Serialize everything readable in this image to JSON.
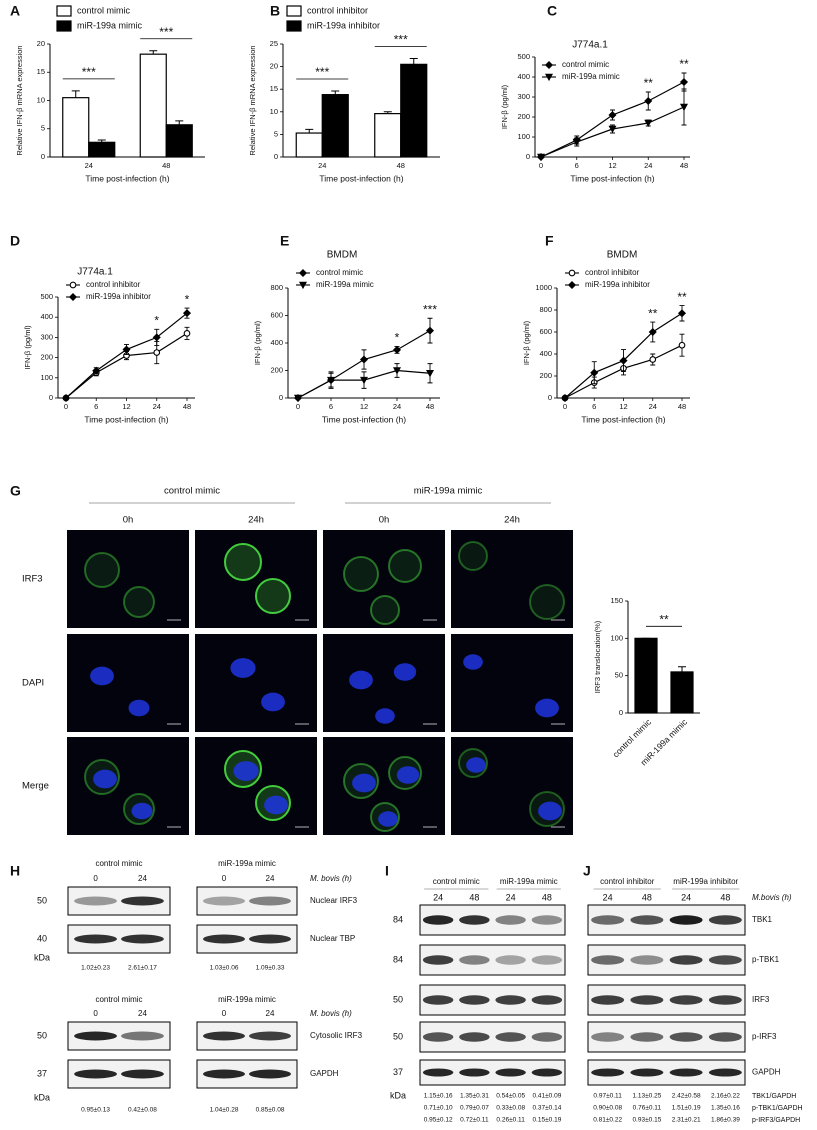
{
  "chart_data": [
    {
      "type": "bar",
      "label": "A",
      "categories": [
        "24",
        "48"
      ],
      "series": [
        {
          "name": "control mimic",
          "color": "#ffffff",
          "values": [
            10.5,
            18.2
          ],
          "errors": [
            1.2,
            0.6
          ]
        },
        {
          "name": "miR-199a mimic",
          "color": "#000000",
          "values": [
            2.6,
            5.7
          ],
          "errors": [
            0.4,
            0.7
          ]
        }
      ],
      "ylim": [
        0,
        20
      ],
      "yticks": [
        0,
        5,
        10,
        15,
        20
      ],
      "ylabel": "Relative IFN-β mRNA expression",
      "xlabel": "Time post-infection (h)",
      "annotations": [
        {
          "text": "***",
          "category": 0
        },
        {
          "text": "***",
          "category": 1
        }
      ]
    },
    {
      "type": "bar",
      "label": "B",
      "categories": [
        "24",
        "48"
      ],
      "series": [
        {
          "name": "control inhibitor",
          "color": "#ffffff",
          "values": [
            5.3,
            9.6
          ],
          "errors": [
            0.8,
            0.4
          ]
        },
        {
          "name": "miR-199a inhibitor",
          "color": "#000000",
          "values": [
            13.8,
            20.5
          ],
          "errors": [
            0.8,
            1.3
          ]
        }
      ],
      "ylim": [
        0,
        25
      ],
      "yticks": [
        0,
        5,
        10,
        15,
        20,
        25
      ],
      "ylabel": "Relative IFN-β mRNA expression",
      "xlabel": "Time post-infection (h)",
      "annotations": [
        {
          "text": "***",
          "category": 0
        },
        {
          "text": "***",
          "category": 1
        }
      ]
    },
    {
      "type": "line",
      "label": "C",
      "title": "J774a.1",
      "categories": [
        "0",
        "6",
        "12",
        "24",
        "48"
      ],
      "series": [
        {
          "name": "control mimic",
          "color": "#000000",
          "marker": "diamond",
          "values": [
            0,
            85,
            210,
            280,
            375
          ],
          "errors": [
            0,
            20,
            25,
            45,
            45
          ]
        },
        {
          "name": "miR-199a mimic",
          "color": "#000000",
          "marker": "triangle-down",
          "values": [
            0,
            75,
            140,
            170,
            250
          ],
          "errors": [
            0,
            20,
            20,
            15,
            90
          ]
        }
      ],
      "ylim": [
        0,
        500
      ],
      "yticks": [
        0,
        100,
        200,
        300,
        400,
        500
      ],
      "ylabel": "IFN-β (pg/ml)",
      "xlabel": "Time post-infection (h)",
      "annotations": [
        {
          "text": "**",
          "category": 3
        },
        {
          "text": "**",
          "category": 4
        }
      ]
    },
    {
      "type": "line",
      "label": "D",
      "title": "J774a.1",
      "categories": [
        "0",
        "6",
        "12",
        "24",
        "48"
      ],
      "series": [
        {
          "name": "control inhibitor",
          "color": "#000000",
          "marker": "circle-open",
          "values": [
            0,
            125,
            210,
            225,
            320
          ],
          "errors": [
            0,
            15,
            20,
            55,
            30
          ]
        },
        {
          "name": "miR-199a inhibitor",
          "color": "#000000",
          "marker": "diamond",
          "values": [
            0,
            135,
            240,
            300,
            420
          ],
          "errors": [
            0,
            15,
            25,
            40,
            25
          ]
        }
      ],
      "ylim": [
        0,
        500
      ],
      "yticks": [
        0,
        100,
        200,
        300,
        400,
        500
      ],
      "ylabel": "IFN-β (pg/ml)",
      "xlabel": "Time post-infection (h)",
      "annotations": [
        {
          "text": "*",
          "category": 3
        },
        {
          "text": "*",
          "category": 4
        }
      ]
    },
    {
      "type": "line",
      "label": "E",
      "title": "BMDM",
      "categories": [
        "0",
        "6",
        "12",
        "24",
        "48"
      ],
      "series": [
        {
          "name": "control mimic",
          "color": "#000000",
          "marker": "diamond",
          "values": [
            0,
            130,
            280,
            350,
            490
          ],
          "errors": [
            0,
            60,
            70,
            25,
            90
          ]
        },
        {
          "name": "miR-199a mimic",
          "color": "#000000",
          "marker": "triangle-down",
          "values": [
            0,
            130,
            130,
            200,
            180
          ],
          "errors": [
            0,
            50,
            60,
            50,
            70
          ]
        }
      ],
      "ylim": [
        0,
        800
      ],
      "yticks": [
        0,
        200,
        400,
        600,
        800
      ],
      "ylabel": "IFN-β (pg/ml)",
      "xlabel": "Time post-infection (h)",
      "annotations": [
        {
          "text": "*",
          "category": 3
        },
        {
          "text": "***",
          "category": 4
        }
      ]
    },
    {
      "type": "line",
      "label": "F",
      "title": "BMDM",
      "categories": [
        "0",
        "6",
        "12",
        "24",
        "48"
      ],
      "series": [
        {
          "name": "control inhibitor",
          "color": "#000000",
          "marker": "circle-open",
          "values": [
            0,
            140,
            270,
            350,
            480
          ],
          "errors": [
            0,
            50,
            60,
            50,
            100
          ]
        },
        {
          "name": "miR-199a inhibitor",
          "color": "#000000",
          "marker": "diamond",
          "values": [
            0,
            230,
            340,
            600,
            770
          ],
          "errors": [
            0,
            100,
            100,
            90,
            70
          ]
        }
      ],
      "ylim": [
        0,
        1000
      ],
      "yticks": [
        0,
        200,
        400,
        600,
        800,
        1000
      ],
      "ylabel": "IFN-β (pg/ml)",
      "xlabel": "Time post-infection (h)",
      "annotations": [
        {
          "text": "**",
          "category": 3
        },
        {
          "text": "**",
          "category": 4
        }
      ]
    },
    {
      "type": "bar",
      "categories": [
        "control mimic",
        "miR-199a mimic"
      ],
      "values": [
        100,
        55
      ],
      "errors": [
        0,
        7
      ],
      "color": "#000000",
      "ylim": [
        0,
        150
      ],
      "yticks": [
        0,
        50,
        100,
        150
      ],
      "ylabel": "IRF3 translocation(%)",
      "annotations": [
        {
          "text": "**"
        }
      ]
    }
  ],
  "microscopy": {
    "label": "G",
    "groups": [
      "control mimic",
      "miR-199a mimic"
    ],
    "times": [
      "0h",
      "24h",
      "0h",
      "24h"
    ],
    "rows": [
      "IRF3",
      "DAPI",
      "Merge"
    ]
  },
  "blot_h": {
    "label": "H",
    "top": {
      "groups": [
        {
          "name": "control mimic",
          "lanes": [
            0,
            24
          ],
          "quant": [
            "1.02±0.23",
            "2.61±0.17"
          ]
        },
        {
          "name": "miR-199a mimic",
          "lanes": [
            0,
            24
          ],
          "quant": [
            "1.03±0.06",
            "1.09±0.33"
          ]
        }
      ],
      "condition": "M. bovis (h)",
      "rows": [
        {
          "kda": 50,
          "name": "Nuclear IRF3"
        },
        {
          "kda": 40,
          "name": "Nuclear TBP"
        }
      ],
      "unit": "kDa"
    },
    "bottom": {
      "groups": [
        {
          "name": "control mimic",
          "lanes": [
            0,
            24
          ],
          "quant": [
            "0.95±0.13",
            "0.42±0.08"
          ]
        },
        {
          "name": "miR-199a mimic",
          "lanes": [
            0,
            24
          ],
          "quant": [
            "1.04±0.28",
            "0.85±0.08"
          ]
        }
      ],
      "condition": "M. bovis (h)",
      "rows": [
        {
          "kda": 50,
          "name": "Cytosolic IRF3"
        },
        {
          "kda": 37,
          "name": "GAPDH"
        }
      ],
      "unit": "kDa"
    }
  },
  "blot_i": {
    "label": "I",
    "groups": [
      {
        "name": "control mimic",
        "lanes": [
          24,
          48
        ]
      },
      {
        "name": "miR-199a mimic",
        "lanes": [
          24,
          48
        ]
      }
    ],
    "kda": [
      84,
      84,
      50,
      50,
      37
    ],
    "unit": "kDa",
    "quant": [
      [
        "1.15±0.16",
        "1.35±0.31",
        "0.54±0.05",
        "0.41±0.09"
      ],
      [
        "0.71±0.10",
        "0.79±0.07",
        "0.33±0.08",
        "0.37±0.14"
      ],
      [
        "0.95±0.12",
        "0.72±0.11",
        "0.26±0.11",
        "0.15±0.19"
      ]
    ]
  },
  "blot_j": {
    "label": "J",
    "groups": [
      {
        "name": "control inhibitor",
        "lanes": [
          24,
          48
        ]
      },
      {
        "name": "miR-199a inhibitor",
        "lanes": [
          24,
          48
        ]
      }
    ],
    "condition": "M.bovis (h)",
    "rows": [
      "TBK1",
      "p-TBK1",
      "IRF3",
      "p-IRF3",
      "GAPDH"
    ],
    "quant": [
      {
        "name": "TBK1/GAPDH",
        "values": [
          "0.97±0.11",
          "1.13±0.25",
          "2.42±0.58",
          "2.16±0.22"
        ]
      },
      {
        "name": "p-TBK1/GAPDH",
        "values": [
          "0.90±0.08",
          "0.76±0.11",
          "1.51±0.19",
          "1.35±0.16"
        ]
      },
      {
        "name": "p-IRF3/GAPDH",
        "values": [
          "0.81±0.22",
          "0.93±0.15",
          "2.31±0.21",
          "1.86±0.39"
        ]
      }
    ]
  }
}
